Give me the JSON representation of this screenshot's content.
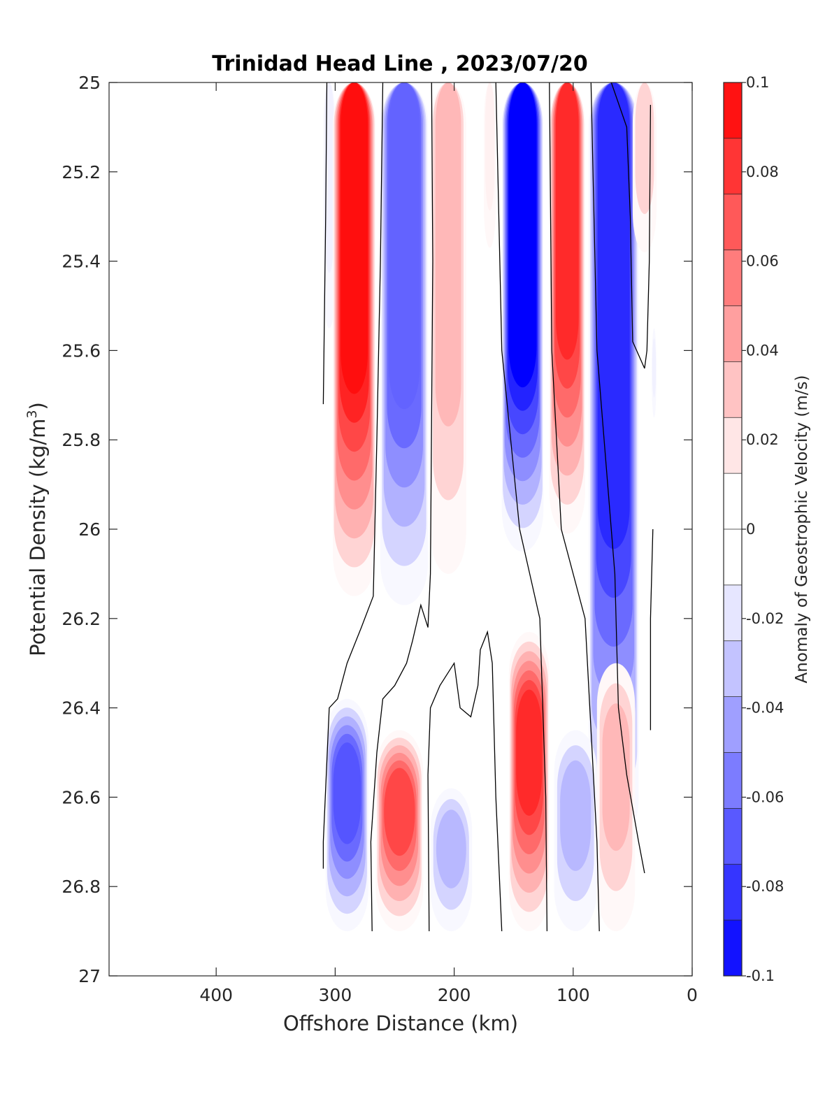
{
  "chart_data": {
    "type": "heatmap",
    "title": "Trinidad Head Line , 2023/07/20",
    "xlabel": "Offshore Distance (km)",
    "ylabel_main": "Potential Density (kg/m",
    "ylabel_sup": "3",
    "ylabel_close": ")",
    "colorbar_label": "Anomaly of Geostrophic Velocity (m/s)",
    "xlim": [
      490,
      0
    ],
    "ylim": [
      25,
      27
    ],
    "x_ticks": [
      "400",
      "300",
      "200",
      "100",
      "0"
    ],
    "x_tick_values": [
      400,
      300,
      200,
      100,
      0
    ],
    "y_ticks": [
      "25",
      "25.2",
      "25.4",
      "25.6",
      "25.8",
      "26",
      "26.2",
      "26.4",
      "26.6",
      "26.8",
      "27"
    ],
    "y_tick_values": [
      25,
      25.2,
      25.4,
      25.6,
      25.8,
      26,
      26.2,
      26.4,
      26.6,
      26.8,
      27
    ],
    "colorbar_ticks": [
      "0.1",
      "0.08",
      "0.06",
      "0.04",
      "0.02",
      "0",
      "-0.02",
      "-0.04",
      "-0.06",
      "-0.08",
      "-0.1"
    ],
    "colorbar_tick_values": [
      0.1,
      0.08,
      0.06,
      0.04,
      0.02,
      0,
      -0.02,
      -0.04,
      -0.06,
      -0.08,
      -0.1
    ],
    "colormap": "red-white-blue diverging, 16 levels",
    "colors": {
      "positive": "#ff0000",
      "negative": "#0000ff",
      "zero": "#ffffff"
    },
    "velocity_bands": [
      {
        "sign": "negative",
        "d_min": 300,
        "d_max": 310,
        "sigma_top": 25.0,
        "sigma_bottom": 25.55,
        "peak": -0.015
      },
      {
        "sign": "positive",
        "d_min": 266,
        "d_max": 302,
        "sigma_top": 25.0,
        "sigma_bottom": 26.15,
        "peak": 0.095
      },
      {
        "sign": "negative",
        "d_min": 222,
        "d_max": 262,
        "sigma_top": 25.0,
        "sigma_bottom": 26.17,
        "peak": -0.065
      },
      {
        "sign": "positive",
        "d_min": 190,
        "d_max": 220,
        "sigma_top": 25.0,
        "sigma_bottom": 26.1,
        "peak": 0.035
      },
      {
        "sign": "positive",
        "d_min": 165,
        "d_max": 175,
        "sigma_top": 25.0,
        "sigma_bottom": 25.37,
        "peak": 0.015
      },
      {
        "sign": "negative",
        "d_min": 125,
        "d_max": 160,
        "sigma_top": 25.0,
        "sigma_bottom": 26.05,
        "peak": -0.11
      },
      {
        "sign": "positive",
        "d_min": 90,
        "d_max": 120,
        "sigma_top": 25.0,
        "sigma_bottom": 26.01,
        "peak": 0.085
      },
      {
        "sign": "negative",
        "d_min": 45,
        "d_max": 87,
        "sigma_top": 25.0,
        "sigma_bottom": 26.7,
        "peak": -0.085
      },
      {
        "sign": "positive",
        "d_min": 30,
        "d_max": 50,
        "sigma_top": 25.0,
        "sigma_bottom": 25.38,
        "peak": 0.025
      },
      {
        "sign": "negative",
        "d_min": 30,
        "d_max": 34,
        "sigma_top": 25.55,
        "sigma_bottom": 25.75,
        "peak": -0.015
      },
      {
        "sign": "negative",
        "d_min": 272,
        "d_max": 308,
        "sigma_top": 26.38,
        "sigma_bottom": 26.9,
        "peak": -0.07
      },
      {
        "sign": "positive",
        "d_min": 226,
        "d_max": 266,
        "sigma_top": 26.45,
        "sigma_bottom": 26.9,
        "peak": 0.075
      },
      {
        "sign": "negative",
        "d_min": 185,
        "d_max": 220,
        "sigma_top": 26.58,
        "sigma_bottom": 26.9,
        "peak": -0.035
      },
      {
        "sign": "positive",
        "d_min": 120,
        "d_max": 154,
        "sigma_top": 26.23,
        "sigma_bottom": 26.9,
        "peak": 0.085
      },
      {
        "sign": "negative",
        "d_min": 80,
        "d_max": 116,
        "sigma_top": 26.45,
        "sigma_bottom": 26.9,
        "peak": -0.035
      },
      {
        "sign": "positive",
        "d_min": 48,
        "d_max": 80,
        "sigma_top": 26.3,
        "sigma_bottom": 26.9,
        "peak": 0.035
      }
    ],
    "zero_contours": [
      [
        [
          310,
          25.72
        ],
        [
          308,
          25.3
        ],
        [
          307,
          25.0
        ]
      ],
      [
        [
          310,
          26.76
        ],
        [
          310,
          26.7
        ],
        [
          305,
          26.4
        ],
        [
          298,
          26.38
        ],
        [
          290,
          26.3
        ],
        [
          278,
          26.22
        ],
        [
          268,
          26.15
        ],
        [
          265,
          25.8
        ],
        [
          262,
          25.4
        ],
        [
          260,
          25.0
        ]
      ],
      [
        [
          269,
          26.9
        ],
        [
          270,
          26.7
        ],
        [
          265,
          26.5
        ],
        [
          260,
          26.38
        ],
        [
          250,
          26.35
        ],
        [
          240,
          26.3
        ],
        [
          235,
          26.25
        ],
        [
          228,
          26.17
        ],
        [
          222,
          26.22
        ],
        [
          220,
          26.1
        ],
        [
          218,
          25.4
        ],
        [
          219,
          25.0
        ]
      ],
      [
        [
          221,
          26.9
        ],
        [
          222,
          26.55
        ],
        [
          220,
          26.4
        ],
        [
          212,
          26.35
        ],
        [
          200,
          26.3
        ],
        [
          195,
          26.4
        ],
        [
          186,
          26.42
        ],
        [
          180,
          26.35
        ],
        [
          178,
          26.27
        ],
        [
          172,
          26.23
        ],
        [
          168,
          26.3
        ],
        [
          165,
          26.6
        ],
        [
          160,
          26.9
        ]
      ],
      [
        [
          122,
          26.9
        ],
        [
          123,
          26.6
        ],
        [
          128,
          26.2
        ],
        [
          145,
          26.0
        ],
        [
          160,
          25.6
        ],
        [
          165,
          25.0
        ]
      ],
      [
        [
          78,
          26.9
        ],
        [
          80,
          26.7
        ],
        [
          90,
          26.2
        ],
        [
          110,
          26.0
        ],
        [
          118,
          25.6
        ],
        [
          120,
          25.0
        ]
      ],
      [
        [
          40,
          26.77
        ],
        [
          45,
          26.7
        ],
        [
          55,
          26.55
        ],
        [
          62,
          26.4
        ],
        [
          65,
          26.1
        ],
        [
          80,
          25.6
        ],
        [
          85,
          25.0
        ]
      ],
      [
        [
          40,
          25.64
        ],
        [
          50,
          25.58
        ],
        [
          52,
          25.3
        ],
        [
          55,
          25.1
        ],
        [
          68,
          25.0
        ]
      ],
      [
        [
          35,
          26.45
        ],
        [
          35,
          26.2
        ],
        [
          33,
          26.0
        ]
      ],
      [
        [
          35,
          25.05
        ],
        [
          36,
          25.4
        ],
        [
          38,
          25.6
        ],
        [
          40,
          25.64
        ]
      ]
    ]
  }
}
